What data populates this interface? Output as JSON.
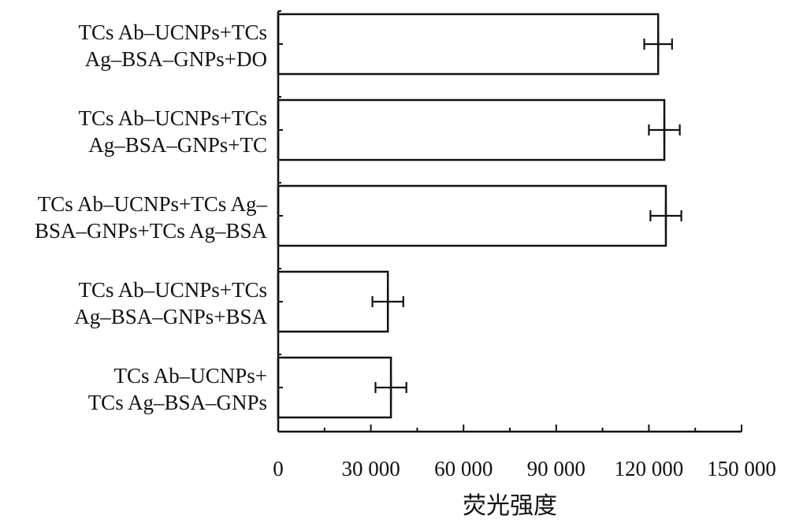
{
  "chart_data": {
    "type": "bar",
    "orientation": "horizontal",
    "categories": [
      [
        "TCs Ab–UCNPs+TCs",
        "Ag–BSA–GNPs+DO"
      ],
      [
        "TCs Ab–UCNPs+TCs",
        "Ag–BSA–GNPs+TC"
      ],
      [
        "TCs Ab–UCNPs+TCs Ag–",
        "BSA–GNPs+TCs Ag–BSA"
      ],
      [
        "TCs Ab–UCNPs+TCs",
        "Ag–BSA–GNPs+BSA"
      ],
      [
        "TCs Ab–UCNPs+",
        "TCs Ag–BSA–GNPs"
      ]
    ],
    "values": [
      123000,
      125000,
      125500,
      35500,
      36500
    ],
    "errors": [
      4500,
      5000,
      5000,
      5000,
      5000
    ],
    "xlabel": "荧光强度",
    "ylabel": "",
    "xlim": [
      0,
      150000
    ],
    "xticks": [
      0,
      30000,
      60000,
      90000,
      120000,
      150000
    ],
    "xtick_labels": [
      "0",
      "30 000",
      "60 000",
      "90 000",
      "120 000",
      "150 000"
    ],
    "grid": false,
    "legend": "none",
    "colors": {
      "bar_fill": "#ffffff",
      "bar_stroke": "#111111"
    }
  }
}
